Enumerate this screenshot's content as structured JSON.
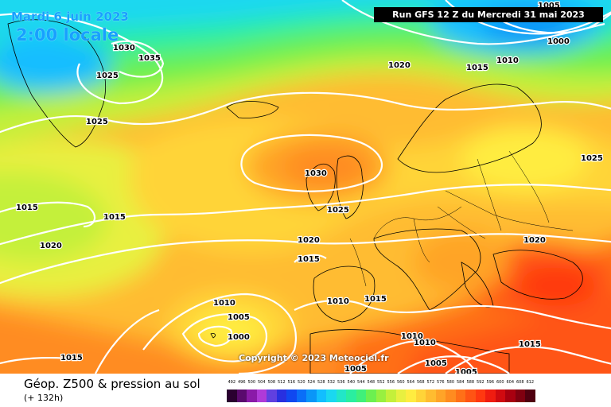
{
  "header": {
    "date": "Mardi 6 juin 2023",
    "time": "2:00 locale",
    "run": "Run GFS 12 Z du Mercredi 31 mai 2023"
  },
  "copyright": "Copyright © 2023 Meteociel.fr",
  "footer": {
    "title": "Géop. Z500 & pression au sol",
    "subtitle": "(+ 132h)"
  },
  "legend": {
    "values": [
      "492",
      "496",
      "500",
      "504",
      "508",
      "512",
      "516",
      "520",
      "524",
      "528",
      "532",
      "536",
      "540",
      "544",
      "548",
      "552",
      "556",
      "560",
      "564",
      "568",
      "572",
      "576",
      "580",
      "584",
      "588",
      "592",
      "596",
      "600",
      "604",
      "608",
      "612"
    ],
    "colors": [
      "#2a0030",
      "#5a0a6e",
      "#8a1aa8",
      "#b03ad8",
      "#6040e0",
      "#2830e0",
      "#1048f0",
      "#0a6ef8",
      "#0a96f8",
      "#12beff",
      "#1ad8f0",
      "#22e6c8",
      "#2aeea0",
      "#40f07a",
      "#6cf050",
      "#98f040",
      "#c4f03a",
      "#e8f040",
      "#ffec40",
      "#ffd438",
      "#ffbc30",
      "#ffa428",
      "#ff8c20",
      "#ff7018",
      "#ff5414",
      "#ff3810",
      "#f01c10",
      "#d00a10",
      "#a80010",
      "#800010",
      "#500010"
    ]
  },
  "isobars": [
    "1030",
    "1035",
    "1025",
    "1025",
    "1015",
    "1015",
    "1020",
    "1030",
    "1025",
    "1020",
    "1015",
    "1010",
    "1005",
    "1000",
    "1010",
    "1015",
    "1010",
    "1010",
    "1005",
    "1005",
    "1015",
    "1005",
    "1020",
    "1025",
    "1015",
    "1020",
    "1010",
    "1015",
    "1000",
    "1005"
  ]
}
